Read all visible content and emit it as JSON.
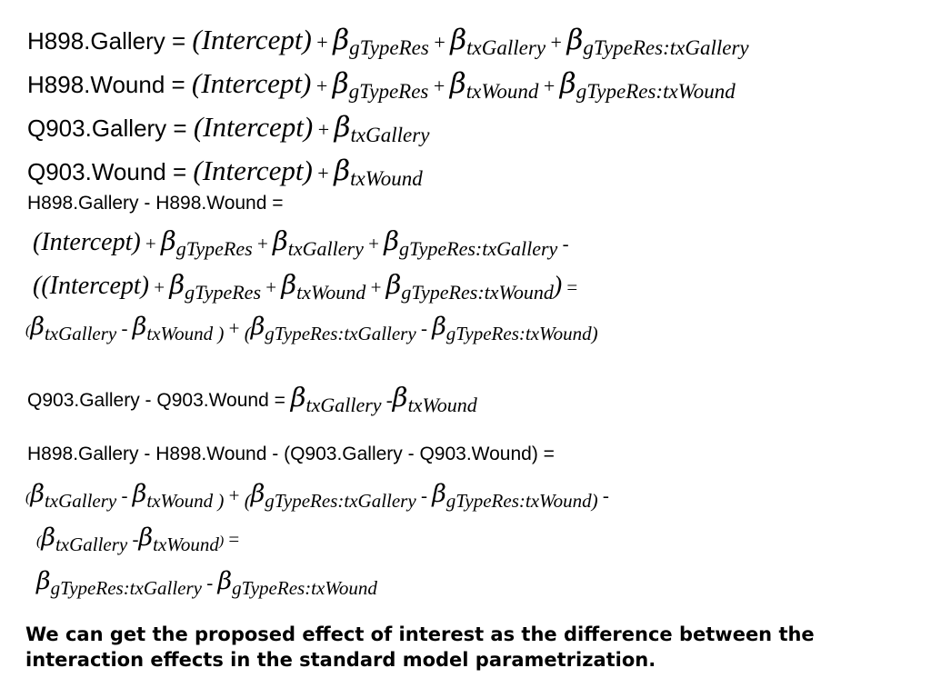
{
  "lines": [
    {
      "cls": "big",
      "left": 30,
      "top": 26,
      "tokens": [
        {
          "k": "sans",
          "t": "H898.Gallery = "
        },
        {
          "k": "ser",
          "t": "(Intercept)"
        },
        {
          "k": "sep",
          "t": " + "
        },
        {
          "k": "beta",
          "t": "β"
        },
        {
          "k": "sub",
          "t": "gTypeRes"
        },
        {
          "k": "sep",
          "t": " + "
        },
        {
          "k": "beta",
          "t": "β"
        },
        {
          "k": "sub",
          "t": "txGallery"
        },
        {
          "k": "sep",
          "t": "  + "
        },
        {
          "k": "beta",
          "t": "β"
        },
        {
          "k": "sub",
          "t": "gTypeRes:txGallery"
        }
      ]
    },
    {
      "cls": "big",
      "left": 30,
      "top": 74,
      "tokens": [
        {
          "k": "sans",
          "t": "H898.Wound = "
        },
        {
          "k": "ser",
          "t": "(Intercept)"
        },
        {
          "k": "sep",
          "t": " + "
        },
        {
          "k": "beta",
          "t": "β"
        },
        {
          "k": "sub",
          "t": "gTypeRes"
        },
        {
          "k": "sep",
          "t": " + "
        },
        {
          "k": "beta",
          "t": "β"
        },
        {
          "k": "sub",
          "t": "txWound"
        },
        {
          "k": "sep",
          "t": "  + "
        },
        {
          "k": "beta",
          "t": "β"
        },
        {
          "k": "sub",
          "t": "gTypeRes:txWound"
        }
      ]
    },
    {
      "cls": "big",
      "left": 30,
      "top": 122,
      "tokens": [
        {
          "k": "sans",
          "t": "Q903.Gallery = "
        },
        {
          "k": "ser",
          "t": "(Intercept)"
        },
        {
          "k": "sep",
          "t": " + "
        },
        {
          "k": "beta",
          "t": "β"
        },
        {
          "k": "sub",
          "t": "txGallery"
        }
      ]
    },
    {
      "cls": "big",
      "left": 30,
      "top": 170,
      "tokens": [
        {
          "k": "sans",
          "t": "Q903.Wound = "
        },
        {
          "k": "ser",
          "t": "(Intercept)"
        },
        {
          "k": "sep",
          "t": " + "
        },
        {
          "k": "beta",
          "t": "β"
        },
        {
          "k": "sub",
          "t": "txWound"
        }
      ]
    },
    {
      "cls": "med",
      "left": 30,
      "top": 212,
      "tokens": [
        {
          "k": "sans",
          "t": "H898.Gallery - H898.Wound ="
        }
      ]
    },
    {
      "cls": "med",
      "left": 36,
      "top": 248,
      "tokens": [
        {
          "k": "ser",
          "t": "(Intercept)"
        },
        {
          "k": "sep",
          "t": " + "
        },
        {
          "k": "beta",
          "t": "β"
        },
        {
          "k": "sub",
          "t": "gTypeRes"
        },
        {
          "k": "sep",
          "t": " + "
        },
        {
          "k": "beta",
          "t": "β"
        },
        {
          "k": "sub",
          "t": "txGallery"
        },
        {
          "k": "sep",
          "t": "  + "
        },
        {
          "k": "beta",
          "t": "β"
        },
        {
          "k": "sub",
          "t": "gTypeRes:txGallery"
        },
        {
          "k": "sep",
          "t": " -"
        }
      ]
    },
    {
      "cls": "med",
      "left": 36,
      "top": 296,
      "tokens": [
        {
          "k": "ser",
          "t": "((Intercept)"
        },
        {
          "k": "sep",
          "t": " + "
        },
        {
          "k": "beta",
          "t": "β"
        },
        {
          "k": "sub",
          "t": "gTypeRes"
        },
        {
          "k": "sep",
          "t": " + "
        },
        {
          "k": "beta",
          "t": "β"
        },
        {
          "k": "sub",
          "t": "txWound"
        },
        {
          "k": "sep",
          "t": "  + "
        },
        {
          "k": "beta",
          "t": "β"
        },
        {
          "k": "sub",
          "t": "gTypeRes:txWound"
        },
        {
          "k": "ser",
          "t": ")"
        },
        {
          "k": "sep",
          "t": "  ="
        }
      ]
    },
    {
      "cls": "sm",
      "left": 28,
      "top": 344,
      "tokens": [
        {
          "k": "ser",
          "t": "("
        },
        {
          "k": "beta",
          "t": "β"
        },
        {
          "k": "sub",
          "t": "txGallery"
        },
        {
          "k": "sep",
          "t": "  - "
        },
        {
          "k": "beta",
          "t": "β"
        },
        {
          "k": "sub",
          "t": "txWound"
        },
        {
          "k": "sub",
          "t": " )"
        },
        {
          "k": "sep",
          "t": " + "
        },
        {
          "k": "sub",
          "t": "("
        },
        {
          "k": "beta",
          "t": "β"
        },
        {
          "k": "sub",
          "t": "gTypeRes:txGallery"
        },
        {
          "k": "sep",
          "t": " - "
        },
        {
          "k": "beta",
          "t": "β"
        },
        {
          "k": "sub",
          "t": "gTypeRes:txWound"
        },
        {
          "k": "sub",
          "t": ")"
        }
      ]
    },
    {
      "cls": "med",
      "left": 30,
      "top": 420,
      "tokens": [
        {
          "k": "sans",
          "t": "Q903.Gallery - Q903.Wound = "
        },
        {
          "k": "beta",
          "t": "β"
        },
        {
          "k": "sub",
          "t": "txGallery"
        },
        {
          "k": "sep",
          "t": " -"
        },
        {
          "k": "beta",
          "t": "β"
        },
        {
          "k": "sub",
          "t": "txWound"
        }
      ]
    },
    {
      "cls": "med",
      "left": 30,
      "top": 488,
      "tokens": [
        {
          "k": "sans",
          "t": "H898.Gallery - H898.Wound - (Q903.Gallery - Q903.Wound) ="
        }
      ]
    },
    {
      "cls": "sm",
      "left": 28,
      "top": 528,
      "tokens": [
        {
          "k": "ser",
          "t": "("
        },
        {
          "k": "beta",
          "t": "β"
        },
        {
          "k": "sub",
          "t": "txGallery"
        },
        {
          "k": "sep",
          "t": "  - "
        },
        {
          "k": "beta",
          "t": "β"
        },
        {
          "k": "sub",
          "t": "txWound"
        },
        {
          "k": "sub",
          "t": " )"
        },
        {
          "k": "sep",
          "t": " + "
        },
        {
          "k": "sub",
          "t": "("
        },
        {
          "k": "beta",
          "t": "β"
        },
        {
          "k": "sub",
          "t": "gTypeRes:txGallery"
        },
        {
          "k": "sep",
          "t": " - "
        },
        {
          "k": "beta",
          "t": "β"
        },
        {
          "k": "sub",
          "t": "gTypeRes:txWound"
        },
        {
          "k": "sub",
          "t": ")"
        },
        {
          "k": "sep",
          "t": " -"
        }
      ]
    },
    {
      "cls": "sm",
      "left": 40,
      "top": 576,
      "tokens": [
        {
          "k": "ser",
          "t": "("
        },
        {
          "k": "beta",
          "t": "β"
        },
        {
          "k": "sub",
          "t": "txGallery"
        },
        {
          "k": "sep",
          "t": " -"
        },
        {
          "k": "beta",
          "t": "β"
        },
        {
          "k": "sub",
          "t": "txWound"
        },
        {
          "k": "ser",
          "t": ")"
        },
        {
          "k": "sep",
          "t": " ="
        }
      ]
    },
    {
      "cls": "sm",
      "left": 40,
      "top": 624,
      "tokens": [
        {
          "k": "beta",
          "t": "β"
        },
        {
          "k": "sub",
          "t": "gTypeRes:txGallery"
        },
        {
          "k": "sep",
          "t": " - "
        },
        {
          "k": "beta",
          "t": "β"
        },
        {
          "k": "sub",
          "t": "gTypeRes:txWound"
        }
      ]
    }
  ],
  "footer": {
    "line1": "We can get the proposed effect of interest as the difference between the",
    "line2": "interaction effects in the standard model parametrization."
  }
}
